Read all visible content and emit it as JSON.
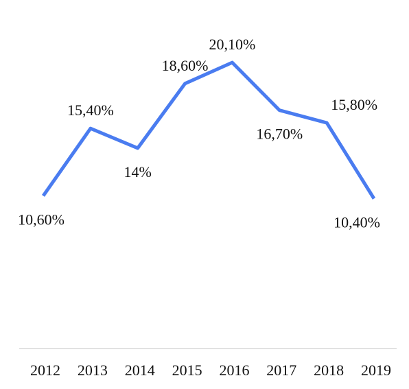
{
  "chart_data": {
    "type": "line",
    "categories": [
      "2012",
      "2013",
      "2014",
      "2015",
      "2016",
      "2017",
      "2018",
      "2019"
    ],
    "values": [
      10.6,
      15.4,
      14.0,
      18.6,
      20.1,
      16.7,
      15.8,
      10.4
    ],
    "data_labels": [
      "10,60%",
      "15,40%",
      "14%",
      "18,60%",
      "20,10%",
      "16,70%",
      "15,80%",
      "10,40%"
    ],
    "label_positions": [
      "below",
      "above",
      "below",
      "above",
      "above",
      "below",
      "above",
      "below"
    ],
    "title": "",
    "xlabel": "",
    "ylabel": "",
    "ylim": [
      0,
      22
    ],
    "grid": false,
    "legend": "none",
    "colors": {
      "line": "#4a7cf0",
      "axis": "#d9d9d9",
      "text": "#111111"
    }
  }
}
